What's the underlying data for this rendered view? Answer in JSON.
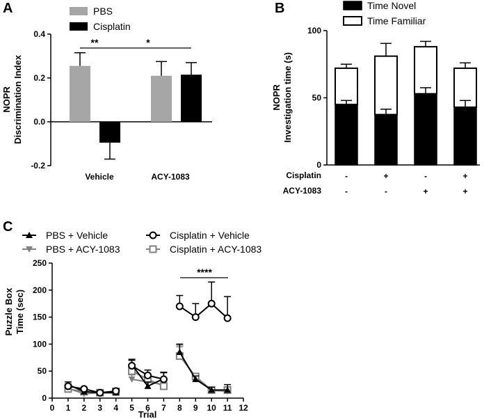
{
  "chart_data": [
    {
      "panel": "A",
      "type": "bar",
      "ylabel": [
        "NOPR",
        "Discrimination Index"
      ],
      "ylim": [
        -0.2,
        0.4
      ],
      "yticks": [
        "0.4",
        "0.2",
        "0.0",
        "-0.2"
      ],
      "categories": [
        "Vehicle",
        "ACY-1083"
      ],
      "series": [
        {
          "name": "PBS",
          "color": "#a6a6a6",
          "values": [
            0.255,
            0.21
          ],
          "errors": [
            0.06,
            0.065
          ]
        },
        {
          "name": "Cisplatin",
          "color": "#000000",
          "values": [
            -0.095,
            0.215
          ],
          "errors": [
            0.075,
            0.055
          ]
        }
      ],
      "significance": [
        "**",
        "*"
      ]
    },
    {
      "panel": "B",
      "type": "bar",
      "stacked": true,
      "ylabel": [
        "NOPR",
        "Investigation time (s)"
      ],
      "ylim": [
        0,
        100
      ],
      "yticks": [
        "100",
        "50",
        "0"
      ],
      "row_labels": [
        "Cisplatin",
        "ACY-1083"
      ],
      "groups": [
        {
          "cisplatin": "-",
          "acy": "-"
        },
        {
          "cisplatin": "+",
          "acy": "-"
        },
        {
          "cisplatin": "-",
          "acy": "+"
        },
        {
          "cisplatin": "+",
          "acy": "+"
        }
      ],
      "series": [
        {
          "name": "Time Novel",
          "color": "#000000",
          "values": [
            45,
            37.5,
            53,
            43
          ],
          "errors": [
            3,
            4,
            4.5,
            5
          ]
        },
        {
          "name": "Time Familiar",
          "color": "#ffffff",
          "values": [
            27,
            43.5,
            35,
            29
          ],
          "errors": [
            3,
            9.5,
            4,
            4
          ]
        }
      ]
    },
    {
      "panel": "C",
      "type": "line",
      "ylabel": [
        "Puzzle Box",
        "Time (sec)"
      ],
      "xlabel": "Trial",
      "xlim": [
        0,
        12
      ],
      "ylim": [
        0,
        250
      ],
      "xticks": [
        "0",
        "1",
        "2",
        "3",
        "4",
        "5",
        "6",
        "7",
        "8",
        "9",
        "10",
        "11",
        "12"
      ],
      "yticks": [
        "250",
        "200",
        "150",
        "100",
        "50",
        "0"
      ],
      "segments": [
        [
          1,
          4
        ],
        [
          5,
          7
        ],
        [
          8,
          11
        ]
      ],
      "significance": "****",
      "series": [
        {
          "name": "PBS + Vehicle",
          "color": "#000000",
          "marker": "triangle-up",
          "x": [
            1,
            2,
            3,
            4,
            5,
            6,
            7,
            8,
            9,
            10,
            11
          ],
          "y": [
            25,
            12,
            10,
            10,
            62,
            22,
            36,
            85,
            35,
            15,
            15
          ],
          "errors": [
            5,
            3,
            4,
            6,
            10,
            8,
            12,
            15,
            6,
            5,
            10
          ]
        },
        {
          "name": "PBS + ACY-1083",
          "color": "#808080",
          "marker": "triangle-down",
          "x": [
            1,
            2,
            3,
            4,
            5,
            6,
            7,
            8,
            9,
            10,
            11
          ],
          "y": [
            18,
            8,
            10,
            10,
            35,
            30,
            25,
            80,
            38,
            14,
            13
          ],
          "errors": [
            4,
            3,
            3,
            4,
            8,
            8,
            6,
            15,
            6,
            4,
            5
          ]
        },
        {
          "name": "Cisplatin + Vehicle",
          "color": "#000000",
          "marker": "circle",
          "x": [
            1,
            2,
            3,
            4,
            5,
            6,
            7,
            8,
            9,
            10,
            11
          ],
          "y": [
            22,
            17,
            10,
            13,
            60,
            42,
            35,
            170,
            150,
            175,
            148
          ],
          "errors": [
            4,
            3,
            3,
            5,
            10,
            10,
            12,
            20,
            25,
            40,
            40
          ]
        },
        {
          "name": "Cisplatin + ACY-1083",
          "color": "#808080",
          "marker": "square",
          "x": [
            1,
            2,
            3,
            4,
            5,
            6,
            7,
            8,
            9,
            10,
            11
          ],
          "y": [
            17,
            12,
            10,
            12,
            50,
            35,
            22,
            78,
            40,
            15,
            15
          ],
          "errors": [
            4,
            3,
            3,
            4,
            8,
            10,
            6,
            20,
            6,
            4,
            5
          ]
        }
      ]
    }
  ]
}
